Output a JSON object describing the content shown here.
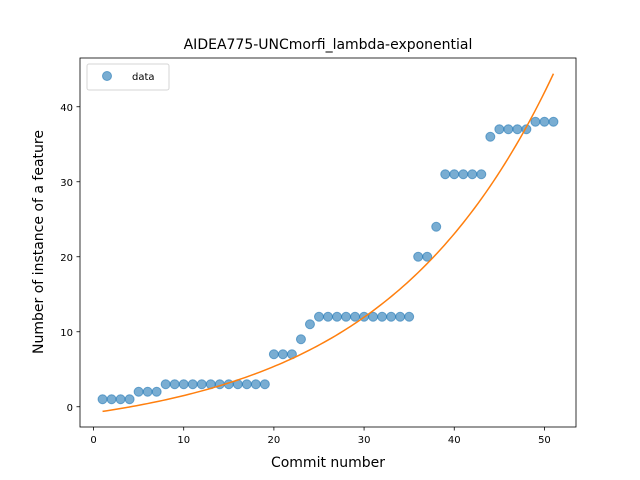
{
  "chart_data": {
    "type": "scatter",
    "title": "AIDEA775-UNCmorfi_lambda-exponential",
    "xlabel": "Commit number",
    "ylabel": "Number of instance of a feature",
    "xlim": [
      -1.5,
      53.5
    ],
    "ylim": [
      -2.7,
      46.5
    ],
    "xticks": [
      0,
      10,
      20,
      30,
      40,
      50
    ],
    "yticks": [
      0,
      10,
      20,
      30,
      40
    ],
    "grid": false,
    "legend_position": "upper left",
    "series": [
      {
        "name": "data",
        "kind": "scatter",
        "color": "#1f77b4",
        "x": [
          1,
          2,
          3,
          4,
          5,
          6,
          7,
          8,
          9,
          10,
          11,
          12,
          13,
          14,
          15,
          16,
          17,
          18,
          19,
          20,
          21,
          22,
          23,
          24,
          25,
          26,
          27,
          28,
          29,
          30,
          31,
          32,
          33,
          34,
          35,
          36,
          37,
          38,
          39,
          40,
          41,
          42,
          43,
          44,
          45,
          46,
          47,
          48,
          49,
          50,
          51
        ],
        "y": [
          1,
          1,
          1,
          1,
          2,
          2,
          2,
          3,
          3,
          3,
          3,
          3,
          3,
          3,
          3,
          3,
          3,
          3,
          3,
          7,
          7,
          7,
          9,
          11,
          12,
          12,
          12,
          12,
          12,
          12,
          12,
          12,
          12,
          12,
          12,
          20,
          20,
          24,
          31,
          31,
          31,
          31,
          31,
          36,
          37,
          37,
          37,
          37,
          38,
          38,
          38
        ]
      },
      {
        "name": "",
        "kind": "fit-line",
        "color": "#ff7f0e",
        "x_range": [
          1,
          51
        ],
        "model": {
          "a": 3.3,
          "b": 0.0527,
          "c": -4.1
        }
      }
    ]
  }
}
